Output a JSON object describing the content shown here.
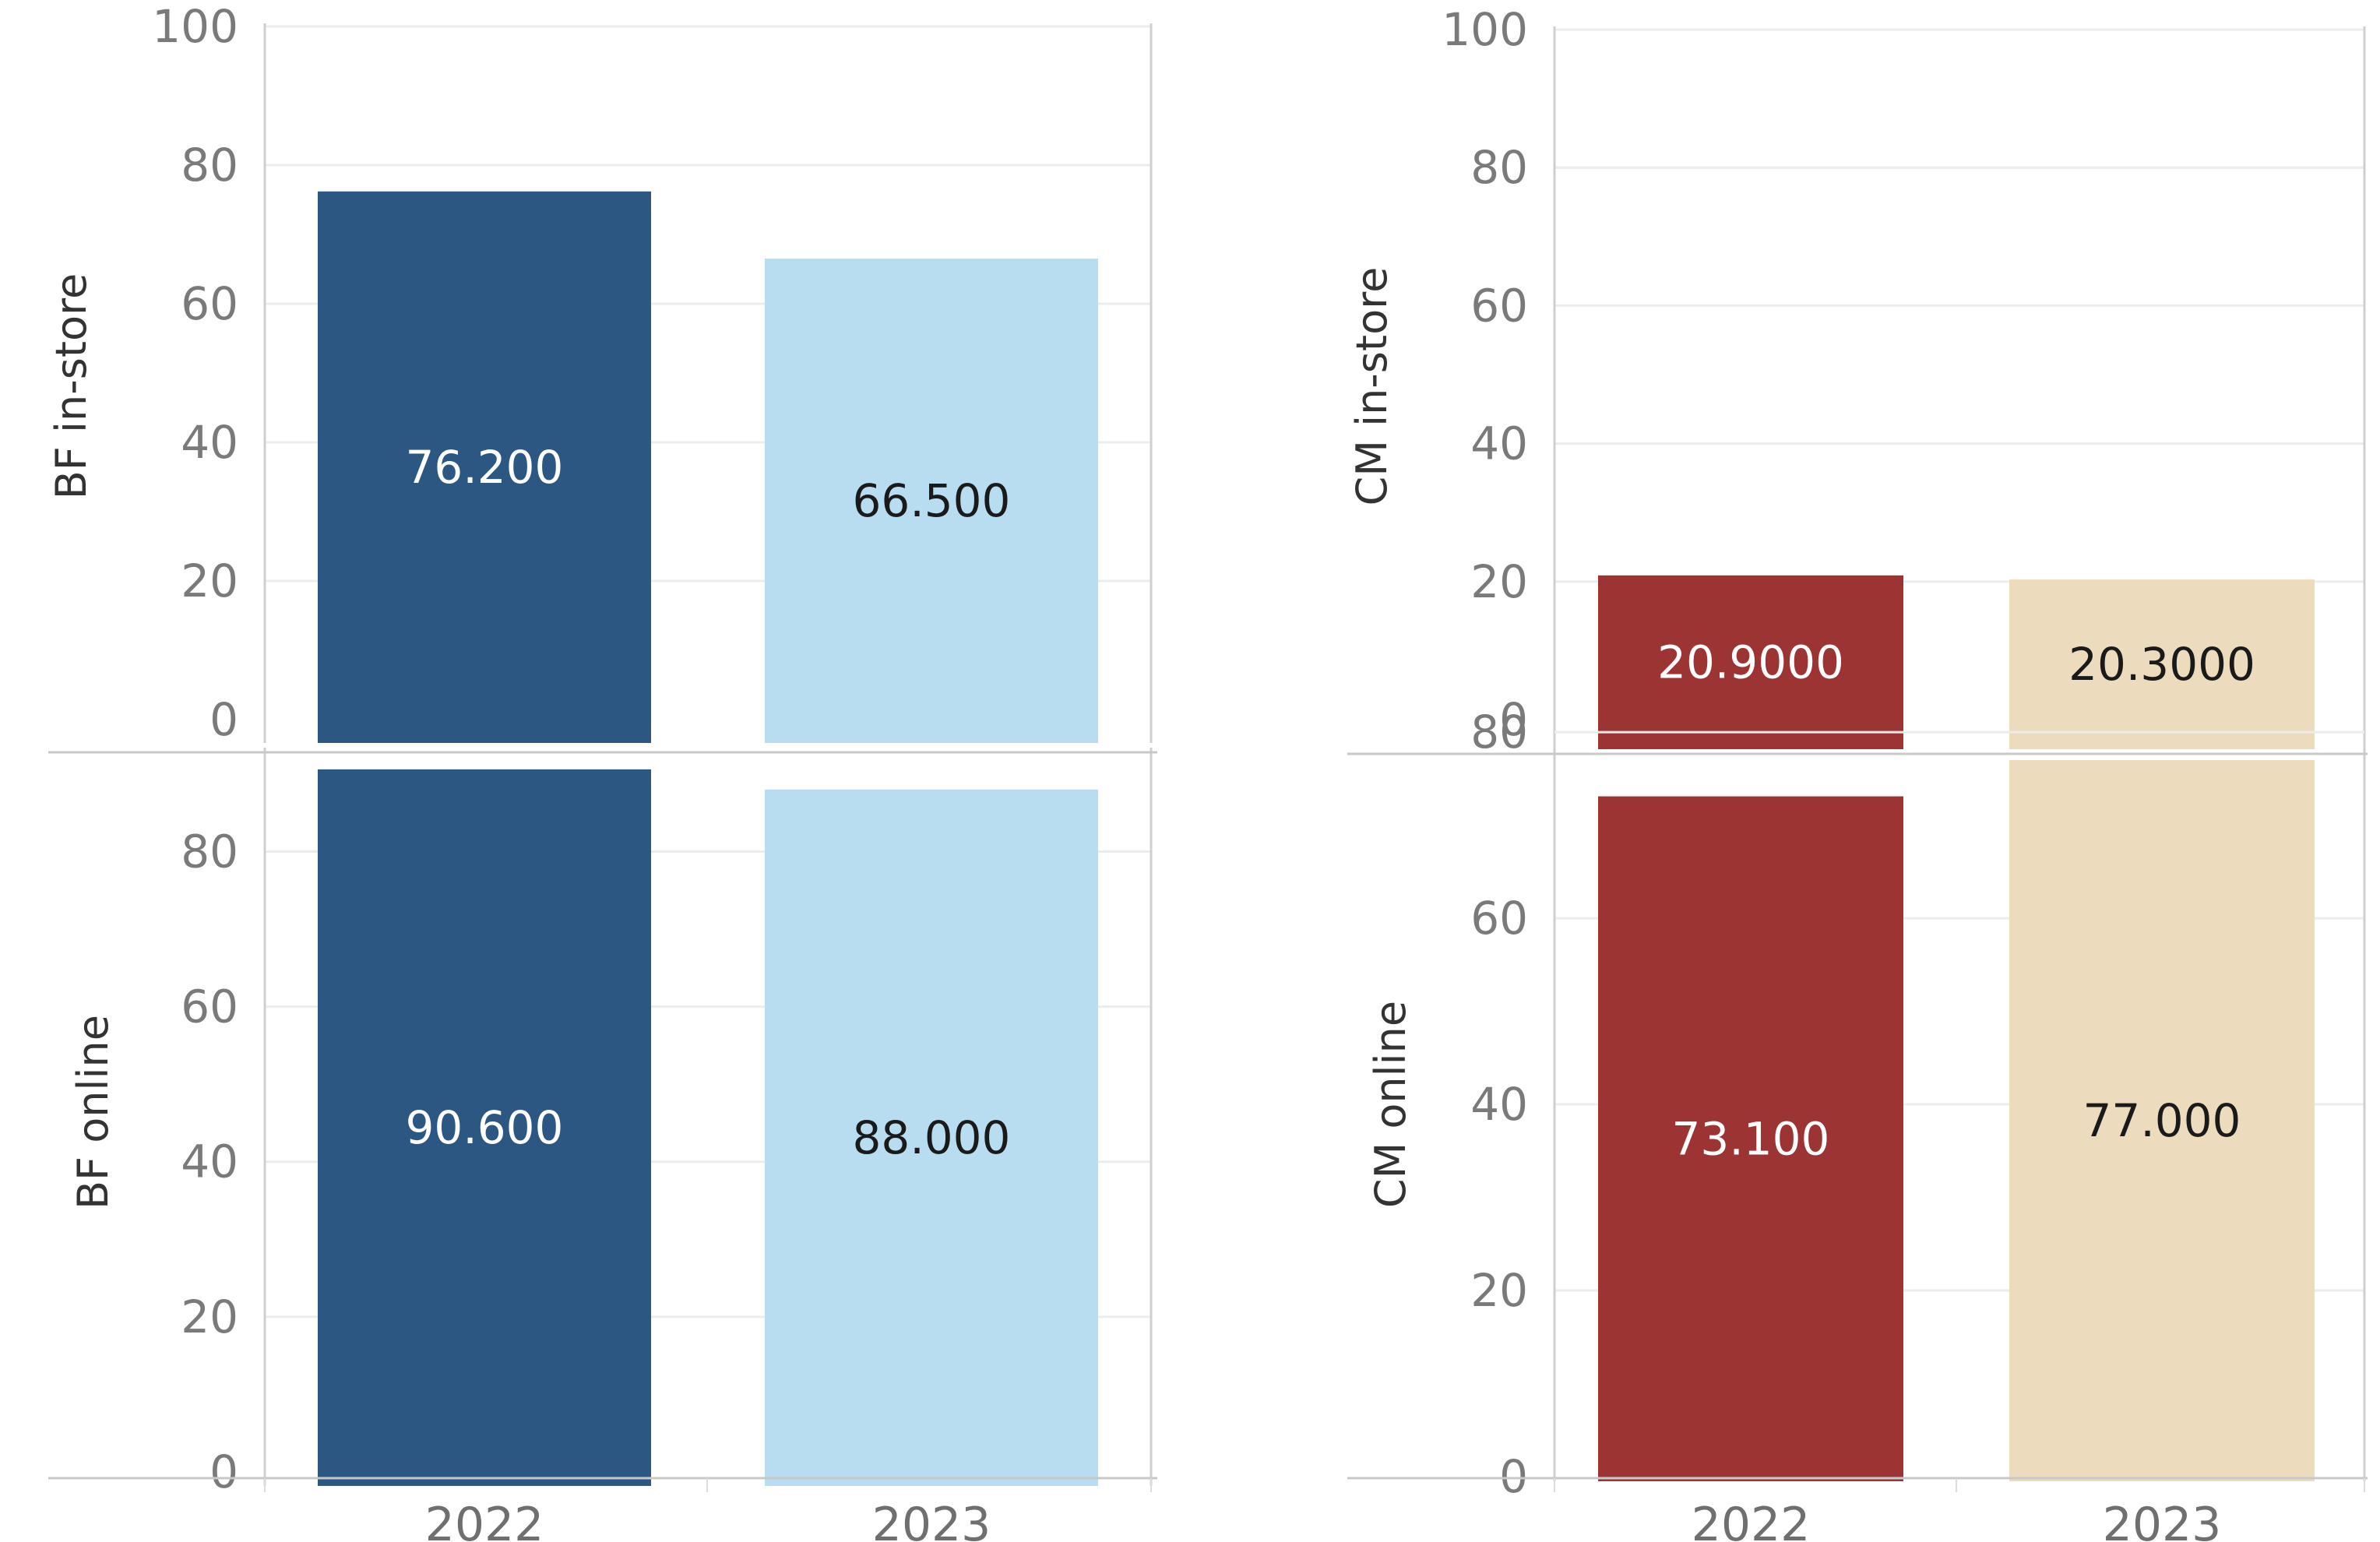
{
  "chart_data": [
    {
      "type": "bar",
      "ylabel": "BF in-store",
      "categories": [
        "2022",
        "2023"
      ],
      "values": [
        76.2,
        66.5
      ],
      "value_labels": [
        "76.200",
        "66.500"
      ],
      "colors": [
        "#2c5782",
        "#b9ddf0"
      ],
      "label_colors": [
        "#ffffff",
        "#1a1a1a"
      ],
      "ylim": [
        0,
        100
      ],
      "yticks": [
        "0",
        "20",
        "40",
        "60",
        "80",
        "100"
      ],
      "grid": true
    },
    {
      "type": "bar",
      "ylabel": "BF online",
      "categories": [
        "2022",
        "2023"
      ],
      "values": [
        90.6,
        88.0
      ],
      "value_labels": [
        "90.600",
        "88.000"
      ],
      "colors": [
        "#2c5782",
        "#b9ddf0"
      ],
      "label_colors": [
        "#ffffff",
        "#1a1a1a"
      ],
      "ylim": [
        0,
        93
      ],
      "yticks": [
        "0",
        "20",
        "40",
        "60",
        "80"
      ],
      "grid": true
    },
    {
      "type": "bar",
      "ylabel": "CM in-store",
      "categories": [
        "2022",
        "2023"
      ],
      "values": [
        20.9,
        20.3
      ],
      "value_labels": [
        "20.9000",
        "20.3000"
      ],
      "colors": [
        "#9c3433",
        "#ecdcbd"
      ],
      "label_colors": [
        "#ffffff",
        "#1a1a1a"
      ],
      "ylim": [
        0,
        100
      ],
      "yticks": [
        "0",
        "20",
        "40",
        "60",
        "80",
        "100"
      ],
      "grid": true
    },
    {
      "type": "bar",
      "ylabel": "CM online",
      "categories": [
        "2022",
        "2023"
      ],
      "values": [
        73.1,
        77.0
      ],
      "value_labels": [
        "73.100",
        "77.000"
      ],
      "colors": [
        "#9c3433",
        "#ecdcbd"
      ],
      "label_colors": [
        "#ffffff",
        "#1a1a1a"
      ],
      "ylim": [
        0,
        78
      ],
      "yticks": [
        "0",
        "20",
        "40",
        "60",
        "80"
      ],
      "grid": true
    }
  ]
}
